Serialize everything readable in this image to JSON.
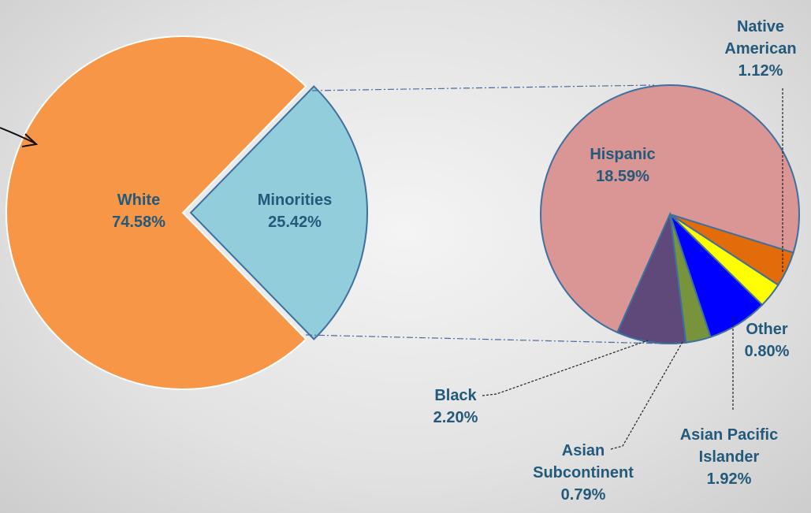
{
  "chart_data": {
    "type": "pie-of-pie",
    "pies": [
      {
        "categories": [
          "White",
          "Minorities"
        ],
        "values": [
          74.58,
          25.42
        ],
        "value_labels": [
          "74.58%",
          "25.42%"
        ],
        "colors": [
          "#f79646",
          "#92cddc"
        ]
      },
      {
        "categories": [
          "Hispanic",
          "Native American",
          "Other",
          "Asian Pacific Islander",
          "Asian Subcontinent",
          "Black"
        ],
        "values": [
          18.59,
          1.12,
          0.8,
          1.92,
          0.79,
          2.2
        ],
        "value_labels": [
          "18.59%",
          "1.12%",
          "0.80%",
          "1.92%",
          "0.79%",
          "2.20%"
        ],
        "colors": [
          "#da9694",
          "#e26b0a",
          "#ffff00",
          "#0000ff",
          "#77933c",
          "#5f497a"
        ]
      }
    ]
  }
}
